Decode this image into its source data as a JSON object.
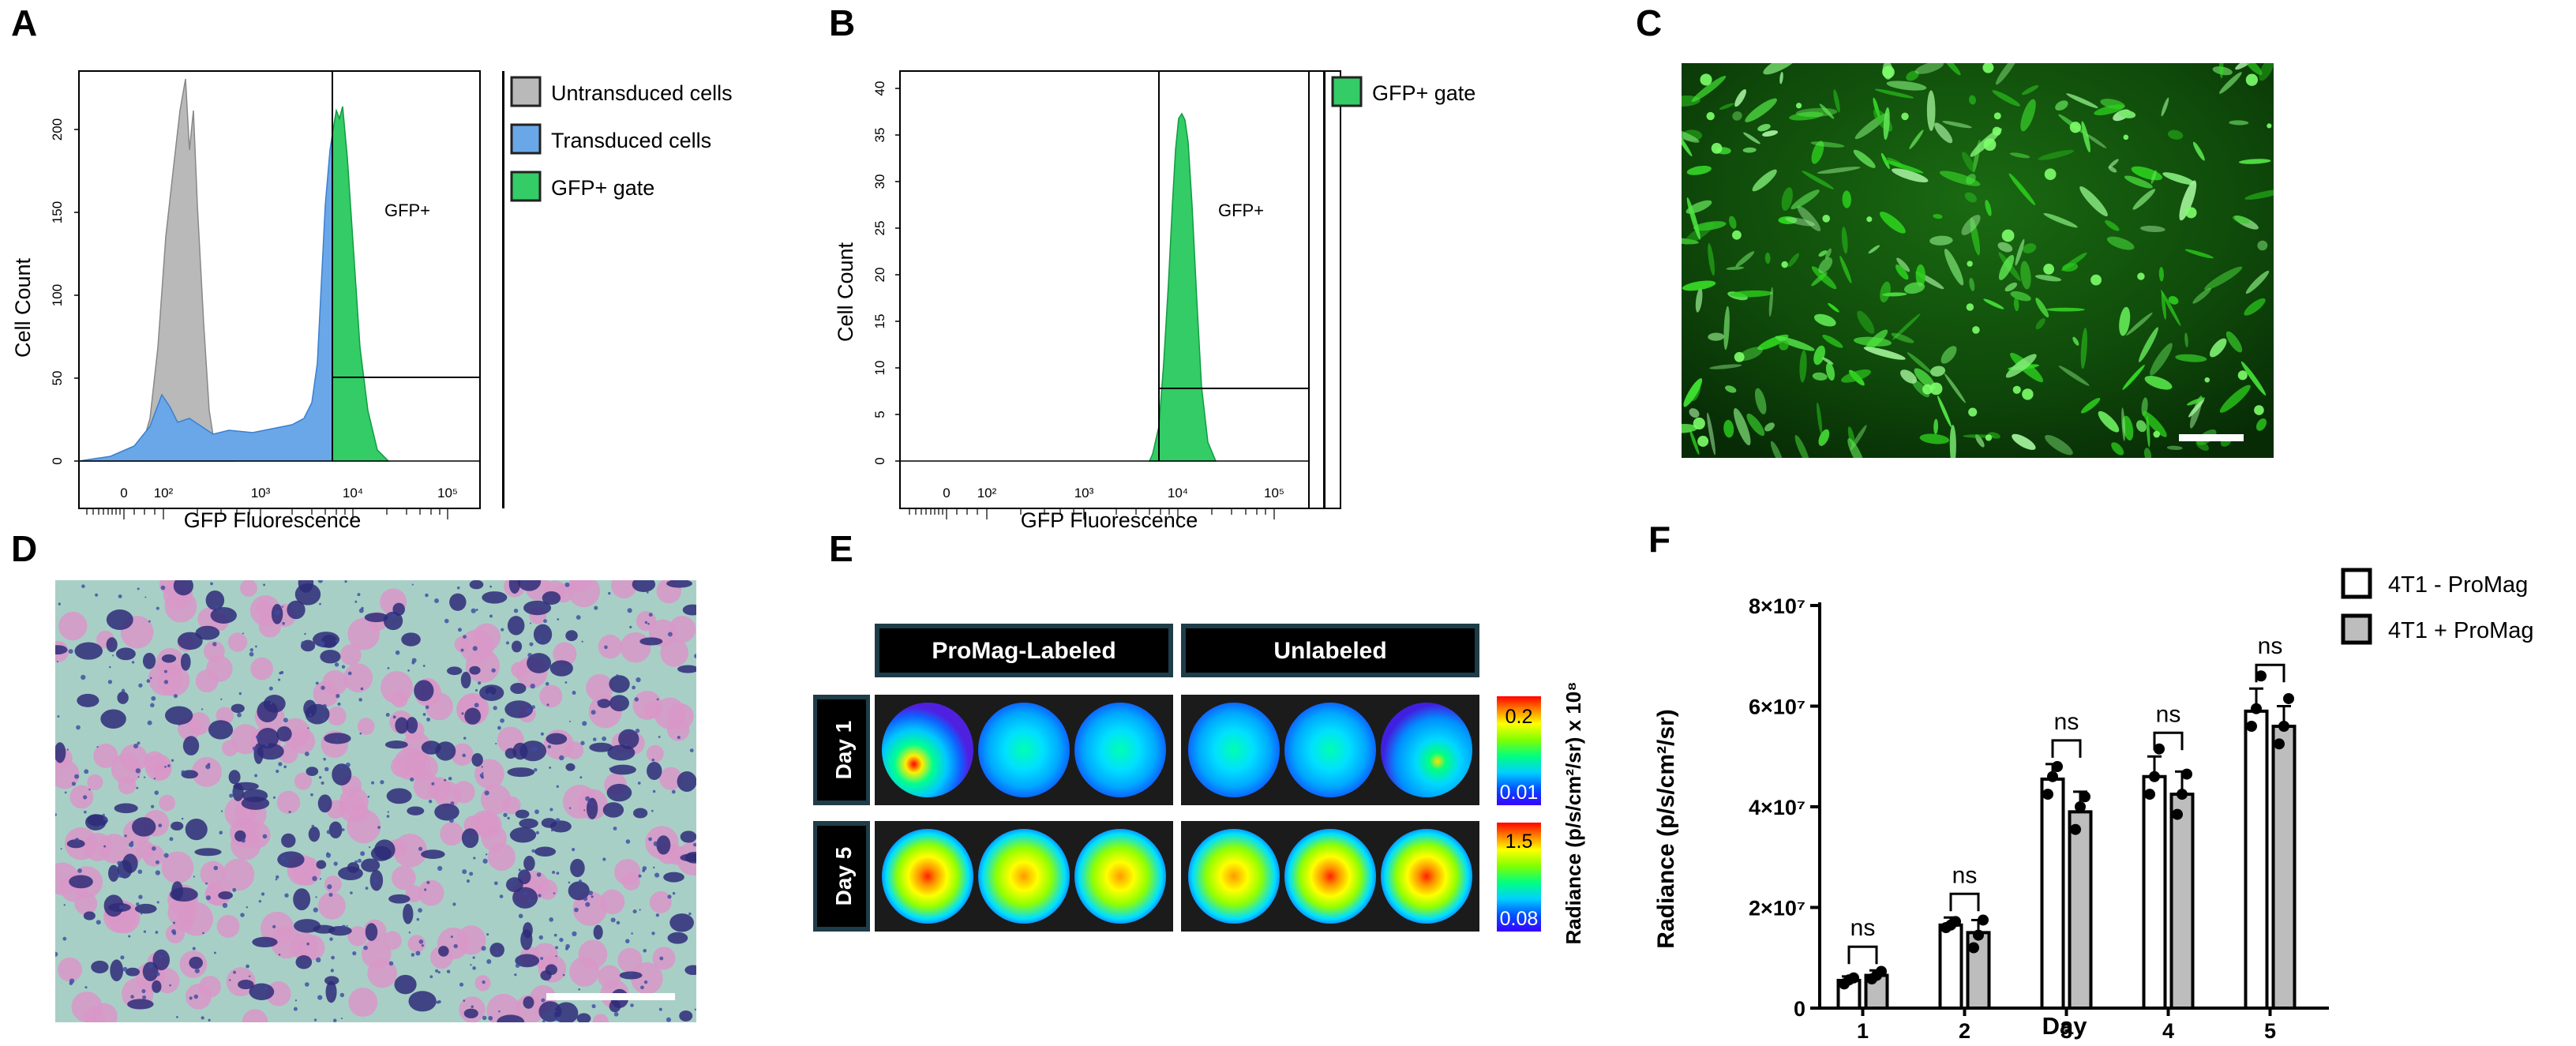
{
  "panels": {
    "A": {
      "letter": "A",
      "ylabel": "Cell Count",
      "xlabel": "GFP Fluorescence",
      "y_ticks": [
        "0",
        "50",
        "100",
        "150",
        "200"
      ],
      "x_ticks": [
        "0",
        "10²",
        "10³",
        "10⁴",
        "10⁵"
      ],
      "gate_label": "GFP+",
      "legend": [
        "Untransduced cells",
        "Transduced cells",
        "GFP+ gate"
      ]
    },
    "B": {
      "letter": "B",
      "ylabel": "Cell Count",
      "xlabel": "GFP Fluorescence",
      "y_ticks": [
        "0",
        "5",
        "10",
        "15",
        "20",
        "25",
        "30",
        "35",
        "40"
      ],
      "x_ticks": [
        "0",
        "10²",
        "10³",
        "10⁴",
        "10⁵"
      ],
      "gate_label": "GFP+",
      "legend": [
        "GFP+ gate"
      ]
    },
    "C": {
      "letter": "C"
    },
    "D": {
      "letter": "D"
    },
    "E": {
      "letter": "E",
      "col_labels": [
        "ProMag-Labeled",
        "Unlabeled"
      ],
      "row_labels": [
        "Day 1",
        "Day 5"
      ],
      "scale1": {
        "max": "0.2",
        "min": "0.01"
      },
      "scale2": {
        "max": "1.5",
        "min": "0.08"
      },
      "colorbar_label": "Radiance (p/s/cm²/sr) x 10⁸"
    },
    "F": {
      "letter": "F",
      "legend": [
        "4T1 - ProMag",
        "4T1 + ProMag"
      ],
      "sig_label": "ns"
    }
  },
  "colors": {
    "untransduced": "#b9b9b9",
    "transduced": "#6aa7e8",
    "gfp_gate": "#33cc66",
    "bar_unlabeled": "#ffffff",
    "bar_labeled": "#bdbdbd"
  },
  "chart_data": [
    {
      "type": "bar",
      "title": "",
      "xlabel": "Day",
      "ylabel": "Radiance (p/s/cm²/sr)",
      "categories": [
        "1",
        "2",
        "3",
        "4",
        "5"
      ],
      "ylim": [
        0,
        80000000
      ],
      "y_ticks": [
        "0",
        "2×10⁷",
        "4×10⁷",
        "6×10⁷",
        "8×10⁷"
      ],
      "series": [
        {
          "name": "4T1 - ProMag",
          "values": [
            5500000,
            16500000,
            45500000,
            46000000,
            59000000
          ],
          "errors": [
            800000,
            1500000,
            3000000,
            4000000,
            4500000
          ]
        },
        {
          "name": "4T1 + ProMag",
          "values": [
            6500000,
            15000000,
            39000000,
            42500000,
            56000000
          ],
          "errors": [
            1000000,
            2500000,
            4000000,
            4500000,
            4000000
          ]
        }
      ],
      "points": [
        [
          [
            4800000,
            5600000,
            6000000
          ],
          [
            16000000,
            16500000,
            17200000
          ],
          [
            42500000,
            46000000,
            48000000
          ],
          [
            42500000,
            46000000,
            51500000
          ],
          [
            56000000,
            59500000,
            66000000
          ]
        ],
        [
          [
            5800000,
            6500000,
            7300000
          ],
          [
            12000000,
            14500000,
            17500000
          ],
          [
            35500000,
            40000000,
            42000000
          ],
          [
            38500000,
            42500000,
            46500000
          ],
          [
            52500000,
            56000000,
            61500000
          ]
        ]
      ],
      "significance": [
        "ns",
        "ns",
        "ns",
        "ns",
        "ns"
      ]
    }
  ]
}
